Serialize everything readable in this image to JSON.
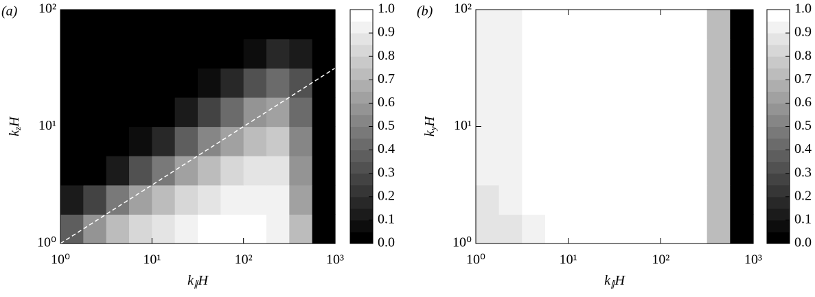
{
  "chart_data": [
    {
      "type": "contour",
      "panel_label": "(a)",
      "x_label": {
        "base": "k",
        "sub": "∥",
        "rest": "H"
      },
      "y_label": {
        "base": "k",
        "sub": "z",
        "rest": "H"
      },
      "log_x": true,
      "log_y": true,
      "xlim": [
        1,
        1000
      ],
      "ylim": [
        1,
        100
      ],
      "xticks": [
        {
          "value": 1,
          "label": "10⁰"
        },
        {
          "value": 10,
          "label": "10¹"
        },
        {
          "value": 100,
          "label": "10²"
        },
        {
          "value": 1000,
          "label": "10³"
        }
      ],
      "yticks": [
        {
          "value": 1,
          "label": "10⁰"
        },
        {
          "value": 10,
          "label": "10¹"
        },
        {
          "value": 100,
          "label": "10²"
        }
      ],
      "x_bins": [
        1,
        1.778,
        3.162,
        5.623,
        10,
        17.78,
        31.62,
        56.23,
        100,
        177.8,
        316.2,
        562.3,
        1000
      ],
      "y_bins": [
        1,
        1.778,
        3.162,
        5.623,
        10,
        17.78,
        31.62,
        56.23,
        100
      ],
      "z": [
        [
          0.35,
          0.55,
          0.7,
          0.8,
          0.87,
          0.92,
          0.95,
          0.97,
          0.97,
          0.93,
          0.7,
          0
        ],
        [
          0.1,
          0.25,
          0.45,
          0.6,
          0.72,
          0.82,
          0.88,
          0.92,
          0.93,
          0.9,
          0.6,
          0
        ],
        [
          0,
          0.02,
          0.12,
          0.3,
          0.45,
          0.6,
          0.72,
          0.8,
          0.85,
          0.85,
          0.55,
          0
        ],
        [
          0,
          0,
          0,
          0.05,
          0.18,
          0.35,
          0.5,
          0.62,
          0.72,
          0.75,
          0.5,
          0
        ],
        [
          0,
          0,
          0,
          0,
          0.02,
          0.1,
          0.25,
          0.4,
          0.55,
          0.6,
          0.4,
          0
        ],
        [
          0,
          0,
          0,
          0,
          0,
          0,
          0.05,
          0.18,
          0.3,
          0.4,
          0.3,
          0
        ],
        [
          0,
          0,
          0,
          0,
          0,
          0,
          0,
          0.02,
          0.08,
          0.15,
          0.12,
          0
        ],
        [
          0,
          0,
          0,
          0,
          0,
          0,
          0,
          0,
          0,
          0,
          0,
          0
        ]
      ],
      "line": {
        "x": [
          1,
          1000
        ],
        "y": [
          1,
          31.6
        ],
        "color": "#ffffff",
        "dashed": true
      },
      "clim": [
        0,
        1
      ],
      "levels": 20,
      "colorbar_ticks": [
        {
          "value": 0,
          "label": "0.0"
        },
        0.1,
        0.2,
        0.3,
        0.4,
        0.5,
        0.6,
        0.7,
        0.8,
        0.9,
        {
          "value": 1,
          "label": "1.0"
        }
      ]
    },
    {
      "type": "contour",
      "panel_label": "(b)",
      "x_label": {
        "base": "k",
        "sub": "∥",
        "rest": "H"
      },
      "y_label": {
        "base": "k",
        "sub": "y",
        "rest": "H"
      },
      "log_x": true,
      "log_y": true,
      "xlim": [
        1,
        1000
      ],
      "ylim": [
        1,
        100
      ],
      "xticks": [
        {
          "value": 1,
          "label": "10⁰"
        },
        {
          "value": 10,
          "label": "10¹"
        },
        {
          "value": 100,
          "label": "10²"
        },
        {
          "value": 1000,
          "label": "10³"
        }
      ],
      "yticks": [
        {
          "value": 1,
          "label": "10⁰"
        },
        {
          "value": 10,
          "label": "10¹"
        },
        {
          "value": 100,
          "label": "10²"
        }
      ],
      "x_bins": [
        1,
        1.778,
        3.162,
        5.623,
        10,
        17.78,
        31.62,
        56.23,
        100,
        177.8,
        316.2,
        562.3,
        1000
      ],
      "y_bins": [
        1,
        1.778,
        3.162,
        5.623,
        10,
        17.78,
        31.62,
        56.23,
        100
      ],
      "z": [
        [
          0.85,
          0.88,
          0.92,
          0.95,
          0.98,
          1,
          1,
          1,
          1,
          0.95,
          0.7,
          0
        ],
        [
          0.88,
          0.92,
          0.95,
          0.97,
          1,
          1,
          1,
          1,
          1,
          0.95,
          0.7,
          0
        ],
        [
          0.9,
          0.93,
          0.95,
          1,
          1,
          1,
          1,
          1,
          1,
          0.95,
          0.7,
          0
        ],
        [
          0.9,
          0.93,
          0.95,
          1,
          1,
          1,
          1,
          1,
          1,
          0.95,
          0.7,
          0
        ],
        [
          0.9,
          0.93,
          0.95,
          1,
          1,
          1,
          1,
          1,
          1,
          0.95,
          0.7,
          0
        ],
        [
          0.9,
          0.93,
          0.95,
          1,
          1,
          1,
          1,
          1,
          1,
          0.95,
          0.7,
          0
        ],
        [
          0.9,
          0.93,
          0.95,
          1,
          1,
          1,
          1,
          1,
          1,
          0.95,
          0.7,
          0
        ],
        [
          0.9,
          0.93,
          0.95,
          1,
          1,
          1,
          1,
          1,
          1,
          0.95,
          0.7,
          0
        ]
      ],
      "clim": [
        0,
        1
      ],
      "levels": 20,
      "colorbar_ticks": [
        {
          "value": 0,
          "label": "0.0"
        },
        0.1,
        0.2,
        0.3,
        0.4,
        0.5,
        0.6,
        0.7,
        0.8,
        0.9,
        {
          "value": 1,
          "label": "1.0"
        }
      ]
    }
  ]
}
